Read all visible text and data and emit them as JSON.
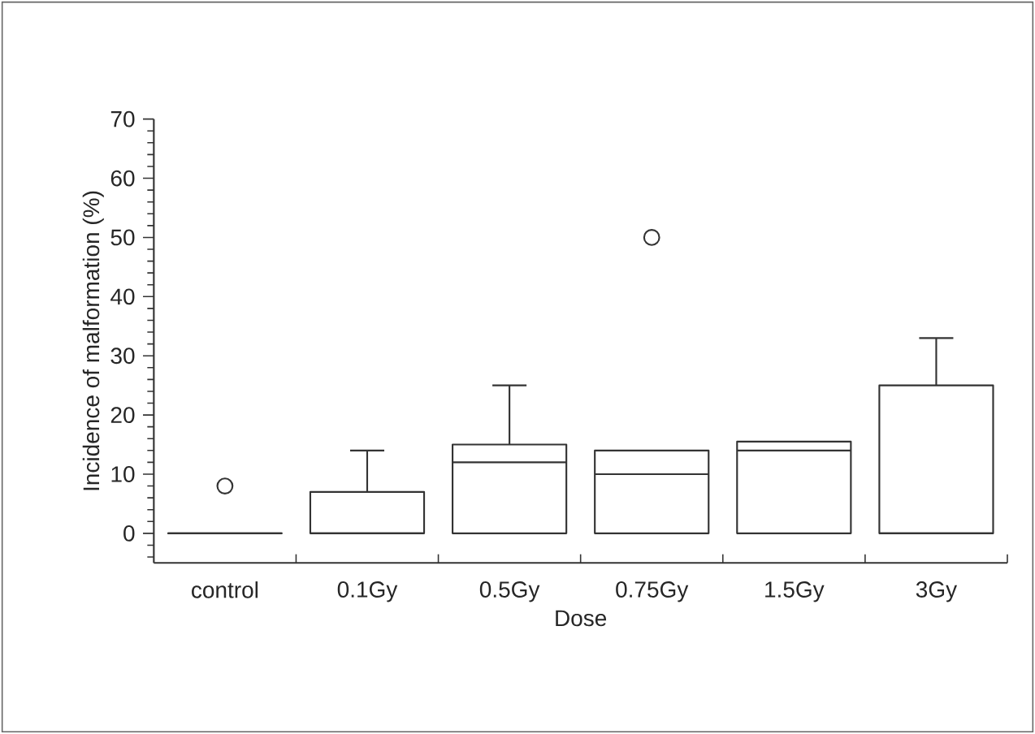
{
  "chart_data": {
    "type": "box",
    "xlabel": "Dose",
    "ylabel": "Incidence of malformation (%)",
    "categories": [
      "control",
      "0.1Gy",
      "0.5Gy",
      "0.75Gy",
      "1.5Gy",
      "3Gy"
    ],
    "boxes": [
      {
        "low": 0,
        "q1": 0,
        "median": 0,
        "q3": 0,
        "high": 0,
        "outliers": [
          8
        ]
      },
      {
        "low": 0,
        "q1": 0,
        "median": 0,
        "q3": 7,
        "high": 14
      },
      {
        "low": 0,
        "q1": 0,
        "median": 12,
        "q3": 15,
        "high": 25
      },
      {
        "low": 0,
        "q1": 0,
        "median": 10,
        "q3": 14,
        "high": 14,
        "outliers": [
          50
        ]
      },
      {
        "low": 0,
        "q1": 0,
        "median": 14,
        "q3": 15.5,
        "high": 15.5
      },
      {
        "low": 0,
        "q1": 0,
        "median": 0,
        "q3": 25,
        "high": 33
      }
    ],
    "color": "#333333",
    "ylim": [
      -5,
      70
    ],
    "yticks": [
      {
        "value": -4,
        "label": null
      },
      {
        "value": -2,
        "label": null
      },
      0,
      {
        "value": 2,
        "label": null
      },
      {
        "value": 4,
        "label": null
      },
      {
        "value": 6,
        "label": null
      },
      {
        "value": 8,
        "label": null
      },
      10,
      {
        "value": 12,
        "label": null
      },
      {
        "value": 14,
        "label": null
      },
      {
        "value": 16,
        "label": null
      },
      {
        "value": 18,
        "label": null
      },
      20,
      {
        "value": 22,
        "label": null
      },
      {
        "value": 24,
        "label": null
      },
      {
        "value": 26,
        "label": null
      },
      {
        "value": 28,
        "label": null
      },
      30,
      {
        "value": 32,
        "label": null
      },
      {
        "value": 34,
        "label": null
      },
      {
        "value": 36,
        "label": null
      },
      {
        "value": 38,
        "label": null
      },
      40,
      {
        "value": 42,
        "label": null
      },
      {
        "value": 44,
        "label": null
      },
      {
        "value": 46,
        "label": null
      },
      {
        "value": 48,
        "label": null
      },
      50,
      {
        "value": 52,
        "label": null
      },
      {
        "value": 54,
        "label": null
      },
      {
        "value": 56,
        "label": null
      },
      {
        "value": 58,
        "label": null
      },
      60,
      {
        "value": 62,
        "label": null
      },
      {
        "value": 64,
        "label": null
      },
      {
        "value": 66,
        "label": null
      },
      {
        "value": 68,
        "label": null
      },
      70
    ]
  }
}
